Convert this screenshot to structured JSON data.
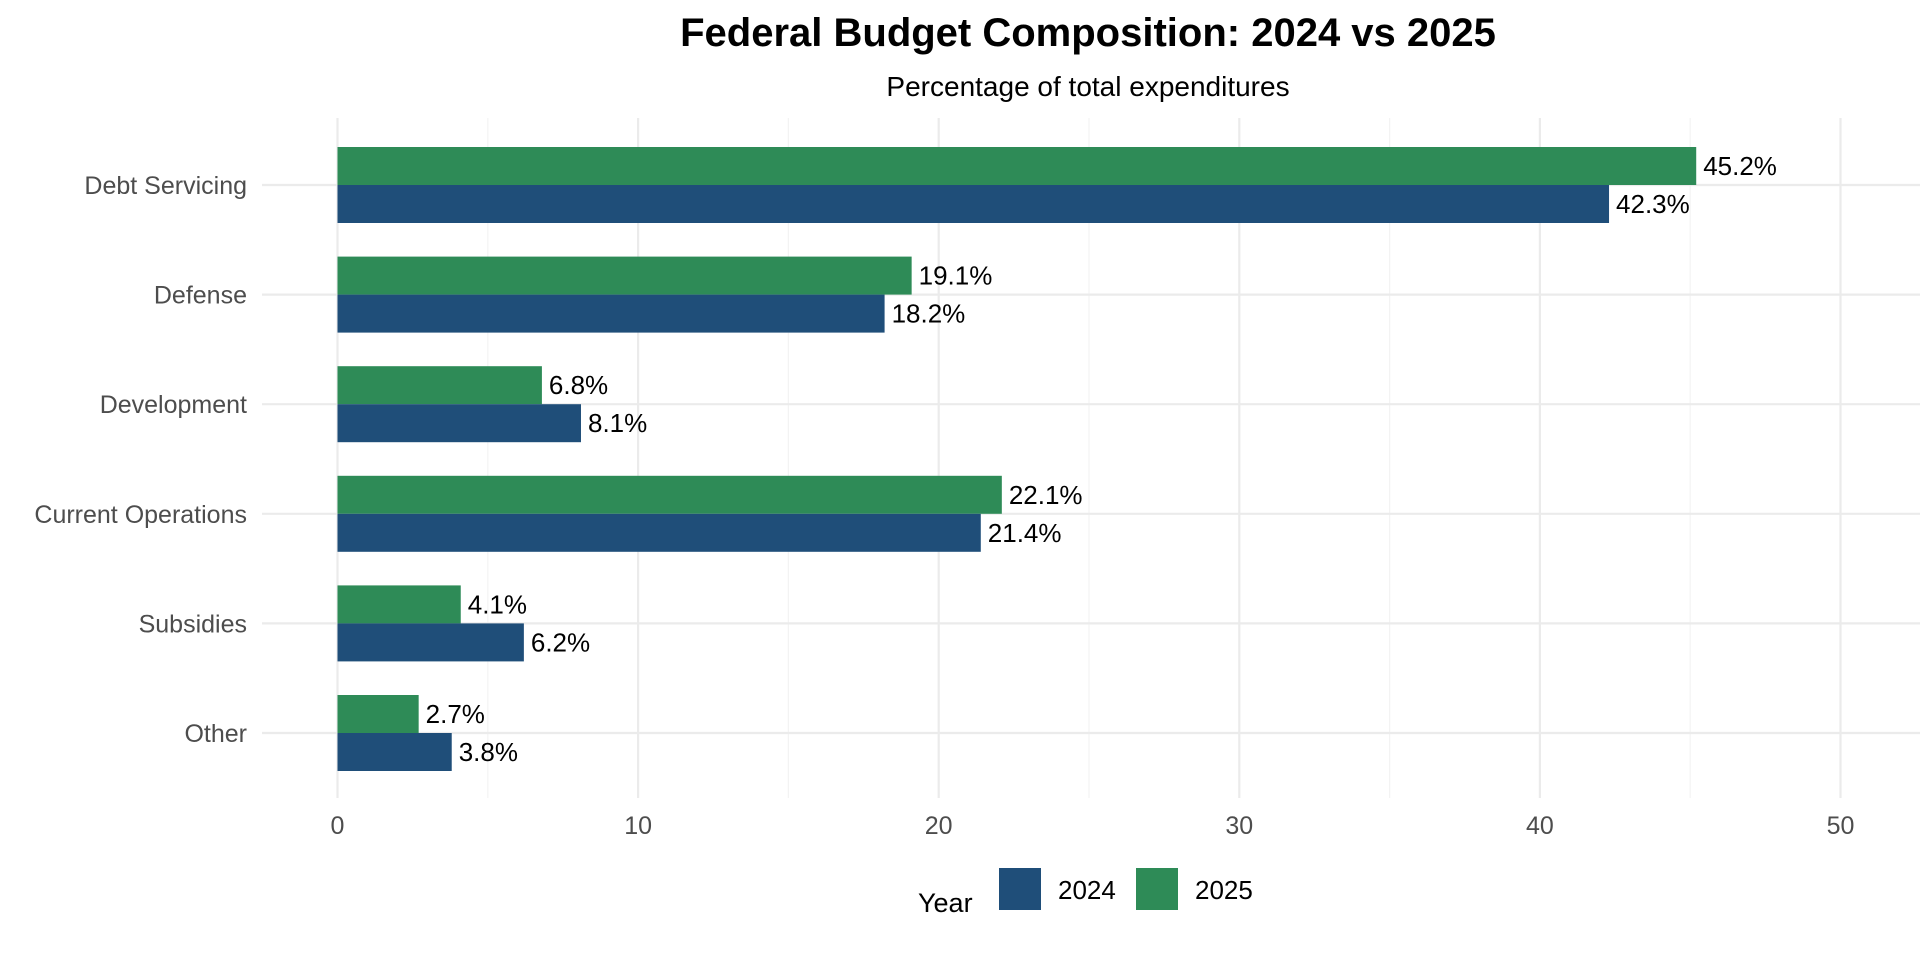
{
  "chart_data": {
    "type": "bar",
    "orientation": "horizontal",
    "title": "Federal Budget Composition: 2024 vs 2025",
    "subtitle": "Percentage of total expenditures",
    "xlabel": "",
    "ylabel": "",
    "categories": [
      "Debt Servicing",
      "Defense",
      "Development",
      "Current Operations",
      "Subsidies",
      "Other"
    ],
    "series": [
      {
        "name": "2024",
        "color": "#1f4e79",
        "values": [
          42.3,
          18.2,
          8.1,
          21.4,
          6.2,
          3.8
        ]
      },
      {
        "name": "2025",
        "color": "#2e8b57",
        "values": [
          45.2,
          19.1,
          6.8,
          22.1,
          4.1,
          2.7
        ]
      }
    ],
    "xlim": [
      0,
      52.5
    ],
    "xticks": [
      0,
      10,
      20,
      30,
      40,
      50
    ],
    "label_suffix": "%",
    "grid": true,
    "legend": {
      "title": "Year",
      "position": "bottom"
    }
  }
}
